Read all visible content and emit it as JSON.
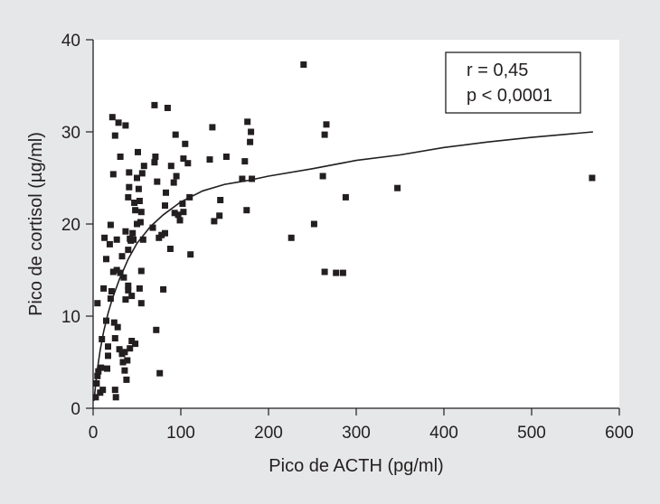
{
  "chart_data": {
    "type": "scatter",
    "xlabel": "Pico de ACTH (pg/ml)",
    "ylabel": "Pico de cortisol (µg/ml)",
    "xlim": [
      0,
      600
    ],
    "ylim": [
      0,
      40
    ],
    "x_ticks": [
      "0",
      "100",
      "200",
      "300",
      "400",
      "500",
      "600"
    ],
    "y_ticks": [
      "0",
      "10",
      "20",
      "30",
      "40"
    ],
    "x_tick_values": [
      0,
      100,
      200,
      300,
      400,
      500,
      600
    ],
    "y_tick_values": [
      0,
      10,
      20,
      30,
      40
    ],
    "grid": false,
    "annotation": {
      "lines": [
        "r = 0,45",
        "p < 0,0001"
      ],
      "placement": "top-right"
    },
    "colors": {
      "background": "#e6e7e8",
      "plot_area": "#ffffff",
      "ink": "#231f20"
    },
    "points": [
      [
        3,
        1.2
      ],
      [
        4,
        2.7
      ],
      [
        5,
        3.5
      ],
      [
        6,
        4
      ],
      [
        5,
        11.4
      ],
      [
        8,
        1.7
      ],
      [
        9,
        4.4
      ],
      [
        11,
        2
      ],
      [
        10,
        7.5
      ],
      [
        12,
        13
      ],
      [
        13,
        18.5
      ],
      [
        15,
        9.5
      ],
      [
        15,
        16.2
      ],
      [
        16,
        4.3
      ],
      [
        17,
        5.7
      ],
      [
        17,
        6.7
      ],
      [
        19,
        17.8
      ],
      [
        20,
        11.9
      ],
      [
        20,
        19.9
      ],
      [
        21,
        12.7
      ],
      [
        22,
        31.6
      ],
      [
        23,
        14.8
      ],
      [
        23,
        25.4
      ],
      [
        24,
        9.3
      ],
      [
        25,
        2
      ],
      [
        25,
        7.6
      ],
      [
        26,
        1.2
      ],
      [
        25,
        29.6
      ],
      [
        27,
        15
      ],
      [
        27,
        18.3
      ],
      [
        29,
        31
      ],
      [
        28,
        8.8
      ],
      [
        30,
        6.4
      ],
      [
        31,
        14.7
      ],
      [
        31,
        27.3
      ],
      [
        33,
        5.9
      ],
      [
        33,
        16.5
      ],
      [
        34,
        5
      ],
      [
        35,
        14.2
      ],
      [
        36,
        4.1
      ],
      [
        36,
        6.1
      ],
      [
        37,
        11.8
      ],
      [
        37,
        19.2
      ],
      [
        37,
        30.7
      ],
      [
        38,
        3.1
      ],
      [
        39,
        5.2
      ],
      [
        40,
        12.8
      ],
      [
        40,
        13.3
      ],
      [
        40,
        17.2
      ],
      [
        40,
        22.9
      ],
      [
        41,
        24
      ],
      [
        41,
        25.6
      ],
      [
        42,
        6.5
      ],
      [
        42,
        18.4
      ],
      [
        43,
        18.2
      ],
      [
        44,
        7.3
      ],
      [
        44,
        12.2
      ],
      [
        45,
        19
      ],
      [
        46,
        18.3
      ],
      [
        47,
        22.3
      ],
      [
        48,
        7
      ],
      [
        48,
        21.5
      ],
      [
        50,
        20
      ],
      [
        50,
        25
      ],
      [
        51,
        27.8
      ],
      [
        52,
        23.8
      ],
      [
        53,
        22.5
      ],
      [
        53,
        13
      ],
      [
        54,
        20.2
      ],
      [
        55,
        11.4
      ],
      [
        55,
        14.9
      ],
      [
        55,
        21.3
      ],
      [
        56,
        25.5
      ],
      [
        57,
        18.3
      ],
      [
        58,
        26.3
      ],
      [
        68,
        19.6
      ],
      [
        70,
        26.7
      ],
      [
        70,
        32.9
      ],
      [
        71,
        27.3
      ],
      [
        72,
        8.5
      ],
      [
        73,
        24.6
      ],
      [
        75,
        18.5
      ],
      [
        76,
        3.8
      ],
      [
        78,
        18.8
      ],
      [
        80,
        12.9
      ],
      [
        82,
        19
      ],
      [
        82,
        22
      ],
      [
        83,
        23.4
      ],
      [
        85,
        32.6
      ],
      [
        88,
        17.3
      ],
      [
        89,
        26.3
      ],
      [
        92,
        24.5
      ],
      [
        93,
        21.2
      ],
      [
        94,
        29.7
      ],
      [
        95,
        25.2
      ],
      [
        97,
        21
      ],
      [
        99,
        20.4
      ],
      [
        102,
        22.2
      ],
      [
        103,
        21.3
      ],
      [
        103,
        27.1
      ],
      [
        105,
        28.7
      ],
      [
        108,
        26.6
      ],
      [
        110,
        22.9
      ],
      [
        111,
        16.7
      ],
      [
        133,
        27
      ],
      [
        136,
        30.5
      ],
      [
        138,
        20.3
      ],
      [
        144,
        20.9
      ],
      [
        145,
        22.6
      ],
      [
        152,
        27.3
      ],
      [
        170,
        24.9
      ],
      [
        173,
        26.8
      ],
      [
        175,
        21.5
      ],
      [
        176,
        31.1
      ],
      [
        179,
        28.9
      ],
      [
        180,
        30
      ],
      [
        181,
        24.9
      ],
      [
        226,
        18.5
      ],
      [
        240,
        37.3
      ],
      [
        252,
        20
      ],
      [
        262,
        25.2
      ],
      [
        264,
        14.8
      ],
      [
        264,
        29.7
      ],
      [
        266,
        30.8
      ],
      [
        277,
        14.7
      ],
      [
        285,
        14.7
      ],
      [
        288,
        22.9
      ],
      [
        347,
        23.9
      ],
      [
        569,
        25
      ]
    ],
    "fit_curve": [
      [
        1,
        0.8
      ],
      [
        3,
        2.7
      ],
      [
        5,
        4.3
      ],
      [
        8,
        6.3
      ],
      [
        12,
        8.3
      ],
      [
        17,
        10.3
      ],
      [
        22,
        11.9
      ],
      [
        30,
        14
      ],
      [
        40,
        16.2
      ],
      [
        50,
        17.9
      ],
      [
        65,
        19.7
      ],
      [
        80,
        21
      ],
      [
        100,
        22.4
      ],
      [
        125,
        23.6
      ],
      [
        150,
        24.3
      ],
      [
        175,
        24.7
      ],
      [
        200,
        25.2
      ],
      [
        250,
        26
      ],
      [
        300,
        26.9
      ],
      [
        350,
        27.5
      ],
      [
        400,
        28.3
      ],
      [
        450,
        28.9
      ],
      [
        500,
        29.4
      ],
      [
        570,
        30
      ]
    ]
  }
}
